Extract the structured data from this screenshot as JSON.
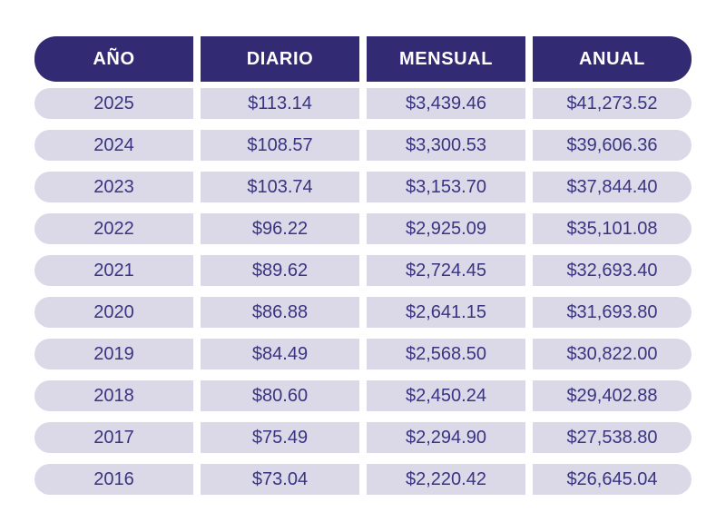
{
  "colors": {
    "page_bg": "#ffffff",
    "header_bg": "#322a72",
    "header_text": "#ffffff",
    "row_bg": "#dbd9e8",
    "row_text": "#393380"
  },
  "chart_data": {
    "type": "table",
    "columns": [
      "AÑO",
      "DIARIO",
      "MENSUAL",
      "ANUAL"
    ],
    "rows": [
      [
        "2025",
        "$113.14",
        "$3,439.46",
        "$41,273.52"
      ],
      [
        "2024",
        "$108.57",
        "$3,300.53",
        "$39,606.36"
      ],
      [
        "2023",
        "$103.74",
        "$3,153.70",
        "$37,844.40"
      ],
      [
        "2022",
        "$96.22",
        "$2,925.09",
        "$35,101.08"
      ],
      [
        "2021",
        "$89.62",
        "$2,724.45",
        "$32,693.40"
      ],
      [
        "2020",
        "$86.88",
        "$2,641.15",
        "$31,693.80"
      ],
      [
        "2019",
        "$84.49",
        "$2,568.50",
        "$30,822.00"
      ],
      [
        "2018",
        "$80.60",
        "$2,450.24",
        "$29,402.88"
      ],
      [
        "2017",
        "$75.49",
        "$2,294.90",
        "$27,538.80"
      ],
      [
        "2016",
        "$73.04",
        "$2,220.42",
        "$26,645.04"
      ]
    ]
  }
}
